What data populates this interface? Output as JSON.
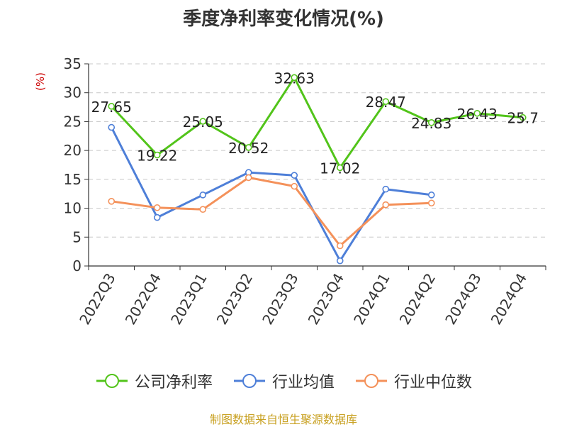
{
  "page": {
    "title": "季度净利率变化情况(%)",
    "footer": "制图数据来自恒生聚源数据库"
  },
  "chart_data": {
    "type": "line",
    "title": "季度净利率变化情况(%)",
    "ylabel": "(%)",
    "categories": [
      "2022Q3",
      "2022Q4",
      "2023Q1",
      "2023Q2",
      "2023Q3",
      "2023Q4",
      "2024Q1",
      "2024Q2",
      "2024Q3",
      "2024Q4"
    ],
    "yticks": [
      0,
      5,
      10,
      15,
      20,
      25,
      30,
      35
    ],
    "ylim": [
      0,
      35
    ],
    "grid": true,
    "legend_position": "bottom",
    "series": [
      {
        "name": "公司净利率",
        "color": "#52c41a",
        "labeled": true,
        "values": [
          27.65,
          19.22,
          25.05,
          20.52,
          32.63,
          17.02,
          28.47,
          24.83,
          26.43,
          25.7
        ]
      },
      {
        "name": "行业均值",
        "color": "#4e7fd8",
        "labeled": false,
        "values": [
          24.0,
          8.4,
          12.3,
          16.2,
          15.7,
          0.9,
          13.3,
          12.3,
          null,
          null
        ]
      },
      {
        "name": "行业中位数",
        "color": "#f4915a",
        "labeled": false,
        "values": [
          11.2,
          10.1,
          9.8,
          15.3,
          13.8,
          3.5,
          10.6,
          10.9,
          null,
          null
        ]
      }
    ]
  }
}
